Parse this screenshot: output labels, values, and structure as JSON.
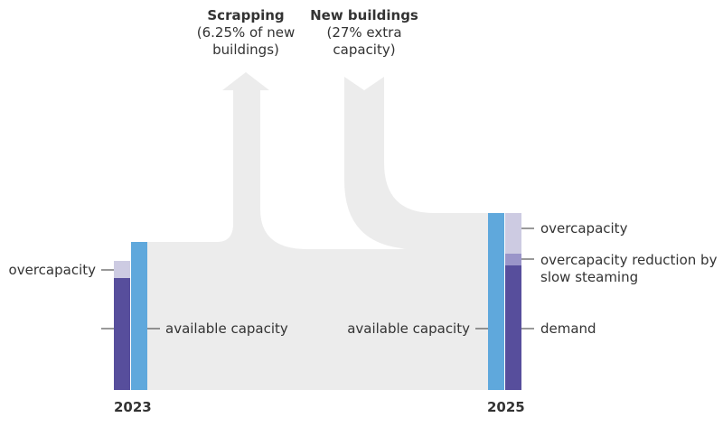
{
  "colors": {
    "demand": "#574e9c",
    "overcapacity": "#cdcbe2",
    "slow_steaming": "#9a95c9",
    "capacity_bar": "#5fa8dc",
    "flow": "#ececec",
    "text": "#333333"
  },
  "top": {
    "scrapping_title": "Scrapping",
    "scrapping_line1": "(6.25% of new",
    "scrapping_line2": "buildings)",
    "newbuild_title": "New buildings",
    "newbuild_line1": "(27% extra",
    "newbuild_line2": "capacity)"
  },
  "left": {
    "overcapacity": "overcapacity",
    "available_capacity": "available capacity",
    "year": "2023"
  },
  "right": {
    "available_capacity": "available capacity",
    "overcapacity": "overcapacity",
    "reduction_line1": "overcapacity reduction by",
    "reduction_line2": "slow steaming",
    "demand": "demand",
    "year": "2025"
  }
}
